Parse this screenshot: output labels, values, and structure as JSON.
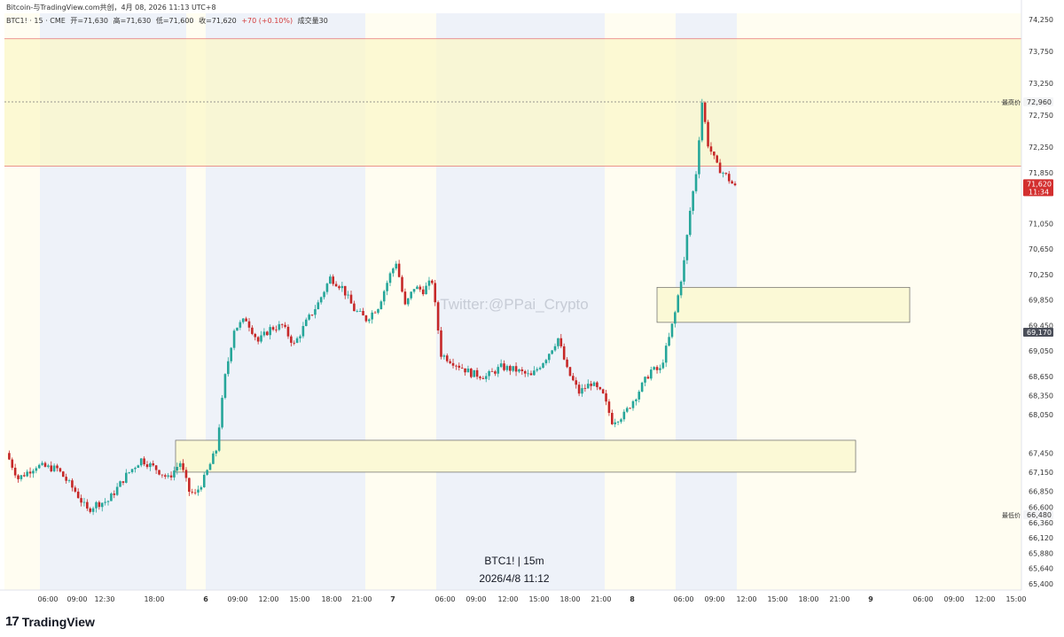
{
  "header": {
    "title": "Bitcoin-与TradingView.com共创，4月 08, 2026 11:13 UTC+8",
    "symbol": "BTC1! · 15 · CME",
    "open": "开=71,630",
    "high": "高=71,630",
    "low": "低=71,600",
    "close": "收=71,620",
    "change": "+70 (+0.10%)",
    "volume": "成交量30"
  },
  "watermark": "Twitter:@PPai_Crypto",
  "caption": {
    "line1": "BTC1! | 15m",
    "line2": "2026/4/8 11:12"
  },
  "brand": {
    "logo": "17",
    "name": "TradingView"
  },
  "price_axis": {
    "labels": [
      "74,250",
      "73,750",
      "73,250",
      "72,750",
      "72,250",
      "71,850",
      "71,050",
      "70,650",
      "70,250",
      "69,850",
      "69,450",
      "69,050",
      "68,650",
      "68,350",
      "68,050",
      "67,450",
      "67,150",
      "66,850",
      "66,600",
      "66,360",
      "66,120",
      "65,880",
      "65,640",
      "65,400"
    ],
    "high_tag": {
      "label": "最高价",
      "value": "72,960"
    },
    "low_tag": {
      "label": "最低价",
      "value": "66,480"
    },
    "last_price": {
      "value": "71,620",
      "countdown": "11:34",
      "color": "#d32f2f"
    },
    "ref_tag": {
      "value": "69,170"
    }
  },
  "time_axis": {
    "labels": [
      "06:00",
      "09:00",
      "12:30",
      "18:00",
      "6",
      "09:00",
      "12:00",
      "15:00",
      "18:00",
      "21:00",
      "7",
      "06:00",
      "09:00",
      "12:00",
      "15:00",
      "18:00",
      "21:00",
      "8",
      "06:00",
      "09:00",
      "12:00",
      "15:00",
      "18:00",
      "21:00",
      "9",
      "06:00",
      "09:00",
      "12:00",
      "15:00"
    ]
  },
  "colors": {
    "up": "#26a69a",
    "down": "#c62828",
    "zone_fill": "#fbf9d6",
    "session_blue": "#eef2f9",
    "session_yellow": "#fffdf1",
    "resistance": "#e57373"
  },
  "chart_data": {
    "type": "candlestick",
    "symbol": "BTC1!",
    "interval": "15m",
    "time_labels": [
      "06:00",
      "09:00",
      "12:30",
      "18:00",
      "6",
      "09:00",
      "12:00",
      "15:00",
      "18:00",
      "21:00",
      "7",
      "06:00",
      "09:00",
      "12:00",
      "15:00",
      "18:00",
      "21:00",
      "8",
      "06:00",
      "09:00",
      "12:00",
      "15:00",
      "18:00",
      "21:00",
      "9",
      "06:00",
      "09:00",
      "12:00",
      "15:00"
    ],
    "price_path": [
      [
        0,
        67450
      ],
      [
        4,
        67050
      ],
      [
        10,
        67250
      ],
      [
        17,
        67200
      ],
      [
        23,
        66850
      ],
      [
        27,
        66550
      ],
      [
        30,
        66650
      ],
      [
        34,
        66700
      ],
      [
        40,
        67100
      ],
      [
        45,
        67350
      ],
      [
        50,
        67200
      ],
      [
        54,
        67050
      ],
      [
        58,
        67300
      ],
      [
        61,
        66850
      ],
      [
        63,
        66800
      ],
      [
        66,
        67050
      ],
      [
        70,
        67500
      ],
      [
        73,
        68650
      ],
      [
        76,
        69400
      ],
      [
        80,
        69550
      ],
      [
        84,
        69200
      ],
      [
        88,
        69400
      ],
      [
        92,
        69450
      ],
      [
        96,
        69150
      ],
      [
        100,
        69500
      ],
      [
        104,
        69800
      ],
      [
        108,
        70200
      ],
      [
        112,
        70050
      ],
      [
        116,
        69700
      ],
      [
        120,
        69550
      ],
      [
        124,
        69750
      ],
      [
        128,
        70250
      ],
      [
        130,
        70450
      ],
      [
        133,
        69750
      ],
      [
        136,
        70050
      ],
      [
        139,
        70000
      ],
      [
        142,
        70150
      ],
      [
        145,
        69000
      ],
      [
        150,
        68850
      ],
      [
        155,
        68700
      ],
      [
        160,
        68650
      ],
      [
        165,
        68800
      ],
      [
        170,
        68750
      ],
      [
        175,
        68650
      ],
      [
        180,
        68950
      ],
      [
        184,
        69250
      ],
      [
        187,
        68750
      ],
      [
        191,
        68400
      ],
      [
        195,
        68550
      ],
      [
        199,
        68350
      ],
      [
        202,
        67950
      ],
      [
        206,
        68050
      ],
      [
        210,
        68350
      ],
      [
        215,
        68750
      ],
      [
        218,
        68750
      ],
      [
        221,
        69250
      ],
      [
        223,
        69650
      ],
      [
        226,
        70450
      ],
      [
        228,
        71250
      ],
      [
        230,
        71850
      ],
      [
        232,
        72960
      ],
      [
        234,
        72300
      ],
      [
        237,
        71950
      ],
      [
        240,
        71800
      ],
      [
        243,
        71620
      ]
    ],
    "annotations": {
      "resistance_zone": [
        71950,
        73950
      ],
      "high_line": 72960,
      "demand_zones": [
        [
          69500,
          70050
        ],
        [
          67150,
          67650
        ]
      ],
      "last_price": 71620,
      "session_high": 72960,
      "session_low": 66480
    },
    "ylim": [
      65300,
      74350
    ]
  }
}
